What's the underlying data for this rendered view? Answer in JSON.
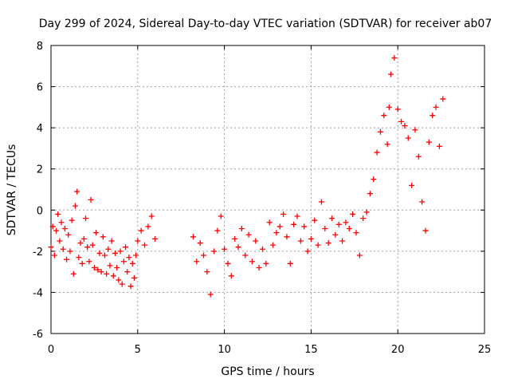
{
  "chart_data": {
    "type": "scatter",
    "title": "Day 299 of 2024, Sidereal Day-to-day VTEC variation (SDTVAR) for receiver ab07",
    "xlabel": "GPS time / hours",
    "ylabel": "SDTVAR / TECUs",
    "xlim": [
      0,
      25
    ],
    "ylim": [
      -6,
      8
    ],
    "xticks": [
      0,
      5,
      10,
      15,
      20,
      25
    ],
    "yticks": [
      -6,
      -4,
      -2,
      0,
      2,
      4,
      6,
      8
    ],
    "xtick_labels": [
      "0",
      "5",
      "10",
      "15",
      "20",
      "25"
    ],
    "ytick_labels": [
      "-6",
      "-4",
      "-2",
      "0",
      "2",
      "4",
      "6",
      "8"
    ],
    "grid": true,
    "marker": "plus",
    "color": "#ff0000",
    "series": [
      {
        "name": "SDTVAR",
        "x": [
          0.0,
          0.1,
          0.2,
          0.3,
          0.4,
          0.5,
          0.6,
          0.7,
          0.8,
          0.9,
          1.0,
          1.1,
          1.2,
          1.3,
          1.4,
          1.5,
          1.6,
          1.7,
          1.8,
          1.9,
          2.0,
          2.1,
          2.2,
          2.3,
          2.4,
          2.5,
          2.6,
          2.7,
          2.8,
          2.9,
          3.0,
          3.1,
          3.2,
          3.3,
          3.4,
          3.5,
          3.6,
          3.7,
          3.8,
          3.9,
          4.0,
          4.1,
          4.2,
          4.3,
          4.4,
          4.5,
          4.6,
          4.7,
          4.8,
          4.9,
          5.0,
          5.2,
          5.4,
          5.6,
          5.8,
          6.0,
          8.2,
          8.4,
          8.6,
          8.8,
          9.0,
          9.2,
          9.4,
          9.6,
          9.8,
          10.0,
          10.2,
          10.4,
          10.6,
          10.8,
          11.0,
          11.2,
          11.4,
          11.6,
          11.8,
          12.0,
          12.2,
          12.4,
          12.6,
          12.8,
          13.0,
          13.2,
          13.4,
          13.6,
          13.8,
          14.0,
          14.2,
          14.4,
          14.6,
          14.8,
          15.0,
          15.2,
          15.4,
          15.6,
          15.8,
          16.0,
          16.2,
          16.4,
          16.6,
          16.8,
          17.0,
          17.2,
          17.4,
          17.6,
          17.8,
          18.0,
          18.2,
          18.4,
          18.6,
          18.8,
          19.0,
          19.2,
          19.4,
          19.5,
          19.6,
          19.8,
          20.0,
          20.2,
          20.4,
          20.6,
          20.8,
          21.0,
          21.2,
          21.4,
          21.6,
          21.8,
          22.0,
          22.2,
          22.4,
          22.6
        ],
        "y": [
          -1.8,
          -0.8,
          -2.2,
          -1.0,
          -0.2,
          -1.5,
          -0.6,
          -1.9,
          -0.9,
          -2.4,
          -1.2,
          -2.0,
          -0.5,
          -3.1,
          0.2,
          0.9,
          -2.3,
          -1.6,
          -2.6,
          -1.4,
          -0.4,
          -1.8,
          -2.5,
          0.5,
          -1.7,
          -2.8,
          -1.1,
          -2.9,
          -2.1,
          -3.0,
          -1.3,
          -2.2,
          -3.1,
          -1.9,
          -2.7,
          -1.5,
          -3.2,
          -2.1,
          -2.8,
          -3.4,
          -2.0,
          -3.6,
          -2.5,
          -1.8,
          -3.0,
          -2.3,
          -3.7,
          -2.6,
          -3.3,
          -2.2,
          -1.5,
          -1.0,
          -1.7,
          -0.8,
          -0.3,
          -1.4,
          -1.3,
          -2.5,
          -1.6,
          -2.2,
          -3.0,
          -4.1,
          -2.0,
          -1.0,
          -0.3,
          -1.9,
          -2.6,
          -3.2,
          -1.4,
          -1.8,
          -0.9,
          -2.2,
          -1.2,
          -2.5,
          -1.5,
          -2.8,
          -1.9,
          -2.6,
          -0.6,
          -1.7,
          -1.1,
          -0.8,
          -0.2,
          -1.3,
          -2.6,
          -0.7,
          -0.3,
          -1.5,
          -0.8,
          -2.0,
          -1.4,
          -0.5,
          -1.7,
          0.4,
          -0.9,
          -1.6,
          -0.4,
          -1.2,
          -0.7,
          -1.5,
          -0.6,
          -0.9,
          -0.2,
          -1.1,
          -2.2,
          -0.4,
          -0.1,
          0.8,
          1.5,
          2.8,
          3.8,
          4.6,
          3.2,
          5.0,
          6.6,
          7.4,
          4.9,
          4.3,
          4.1,
          3.5,
          1.2,
          3.9,
          2.6,
          0.4,
          -1.0,
          3.3,
          4.6,
          5.0,
          3.1,
          5.4
        ]
      }
    ]
  }
}
